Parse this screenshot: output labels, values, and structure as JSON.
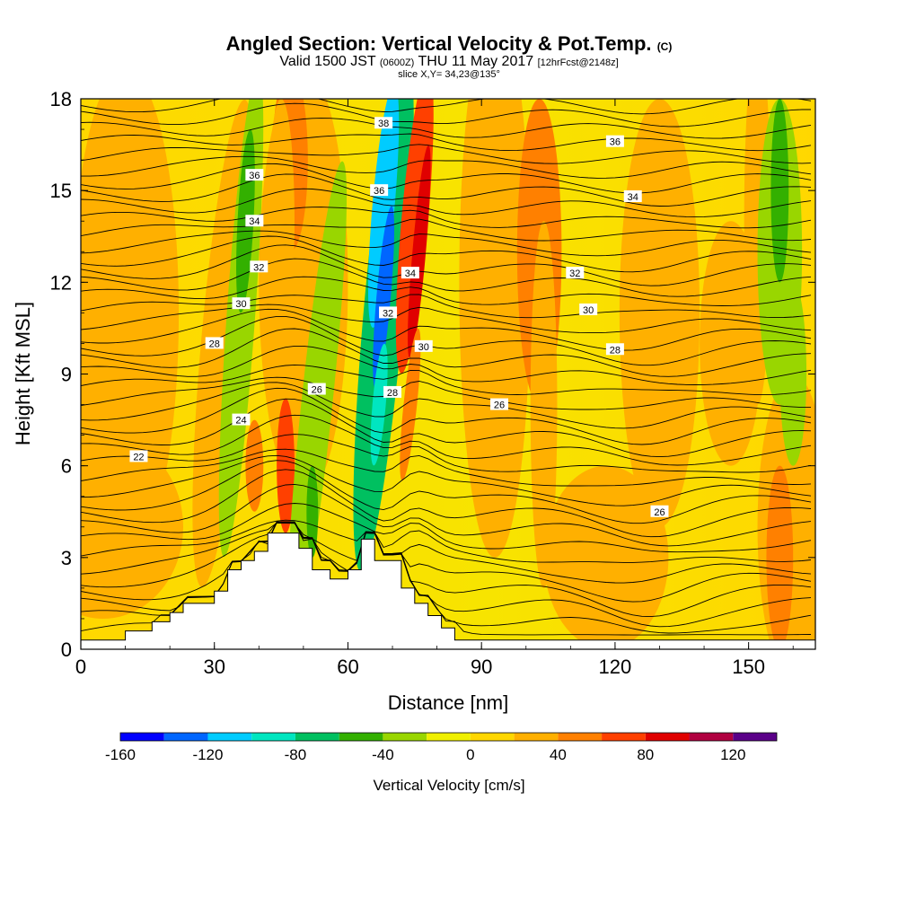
{
  "header": {
    "title": "Angled Section: Vertical Velocity & Pot.Temp.",
    "title_tag": "(C)",
    "valid_prefix": "Valid 1500 JST",
    "valid_utc": "(0600Z)",
    "valid_date": "THU 11 May 2017",
    "forecast": "[12hrFcst@2148z]",
    "slice": "slice X,Y= 34,23@135°"
  },
  "chart_data": {
    "type": "heatmap",
    "title": "Angled Section: Vertical Velocity & Pot.Temp.",
    "xlabel": "Distance [nm]",
    "ylabel": "Height [Kft MSL]",
    "xlim": [
      0,
      165
    ],
    "ylim": [
      0,
      18
    ],
    "xticks": [
      0,
      30,
      60,
      90,
      120,
      150
    ],
    "yticks": [
      0,
      3,
      6,
      9,
      12,
      15,
      18
    ],
    "colorbar": {
      "label": "Vertical Velocity [cm/s]",
      "ticks": [
        -160,
        -120,
        -80,
        -40,
        0,
        40,
        80,
        120
      ],
      "bounds": [
        -160,
        140
      ],
      "colors": [
        "#0000ff",
        "#0066ff",
        "#00ccff",
        "#00e6c0",
        "#00c060",
        "#33b000",
        "#99d600",
        "#f0f000",
        "#ffd700",
        "#ffb000",
        "#ff8000",
        "#ff4000",
        "#e00000",
        "#b00040",
        "#5a0088"
      ]
    },
    "velocity_features": [
      {
        "x": 36,
        "y": 10.5,
        "value": -40
      },
      {
        "x": 52,
        "y": 7,
        "value": -30
      },
      {
        "x": 68,
        "y": 11,
        "value": -130
      },
      {
        "x": 75,
        "y": 14,
        "value": 80
      },
      {
        "x": 157,
        "y": 13,
        "value": -40
      },
      {
        "x": 104,
        "y": 14,
        "value": 30
      }
    ],
    "theta_contours": [
      {
        "level": 22,
        "x": 13,
        "y": 6.3
      },
      {
        "level": 24,
        "x": 36,
        "y": 7.5
      },
      {
        "level": 26,
        "x": 53,
        "y": 8.5
      },
      {
        "level": 28,
        "x": 30,
        "y": 10
      },
      {
        "level": 30,
        "x": 36,
        "y": 11.3
      },
      {
        "level": 32,
        "x": 40,
        "y": 12.5
      },
      {
        "level": 34,
        "x": 39,
        "y": 14
      },
      {
        "level": 36,
        "x": 39,
        "y": 15.5
      },
      {
        "level": 38,
        "x": 68,
        "y": 17.2
      },
      {
        "level": 36,
        "x": 67,
        "y": 15
      },
      {
        "level": 34,
        "x": 74,
        "y": 12.3
      },
      {
        "level": 32,
        "x": 69,
        "y": 11
      },
      {
        "level": 30,
        "x": 77,
        "y": 9.9
      },
      {
        "level": 28,
        "x": 70,
        "y": 8.4
      },
      {
        "level": 26,
        "x": 94,
        "y": 8
      },
      {
        "level": 28,
        "x": 120,
        "y": 9.8
      },
      {
        "level": 30,
        "x": 114,
        "y": 11.1
      },
      {
        "level": 32,
        "x": 111,
        "y": 12.3
      },
      {
        "level": 34,
        "x": 124,
        "y": 14.8
      },
      {
        "level": 36,
        "x": 120,
        "y": 16.6
      },
      {
        "level": 26,
        "x": 130,
        "y": 4.5
      }
    ],
    "terrain_x": [
      0,
      10,
      10,
      16,
      16,
      20,
      20,
      23,
      23,
      30,
      30,
      33,
      33,
      36,
      36,
      39,
      39,
      42,
      42,
      49,
      49,
      52,
      52,
      56,
      56,
      60,
      60,
      63,
      63,
      66,
      66,
      72,
      72,
      75,
      75,
      78,
      78,
      81,
      81,
      84,
      84,
      90,
      90,
      165
    ],
    "terrain_y": [
      0.3,
      0.3,
      0.6,
      0.6,
      0.9,
      0.9,
      1.2,
      1.2,
      1.5,
      1.5,
      1.9,
      1.9,
      2.6,
      2.6,
      2.9,
      2.9,
      3.2,
      3.2,
      3.8,
      3.8,
      3.3,
      3.3,
      2.6,
      2.6,
      2.3,
      2.3,
      2.6,
      2.6,
      3.6,
      3.6,
      2.9,
      2.9,
      2,
      2,
      1.5,
      1.5,
      1.1,
      1.1,
      0.7,
      0.7,
      0.3,
      0.3,
      0.3,
      0.3
    ]
  }
}
